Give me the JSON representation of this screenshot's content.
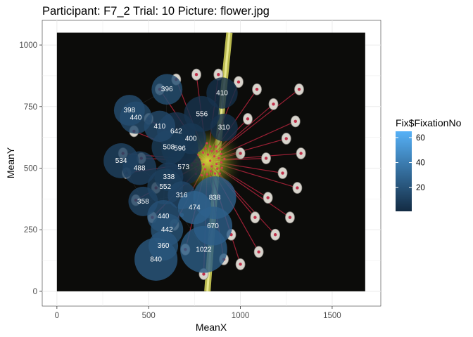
{
  "chart_data": {
    "type": "scatter",
    "title": "Participant: F7_2 Trial: 10 Picture: flower.jpg",
    "xlabel": "MeanX",
    "ylabel": "MeanY",
    "xlim": [
      -80,
      1765
    ],
    "ylim": [
      -60,
      1100
    ],
    "x_ticks": [
      0,
      500,
      1000,
      1500
    ],
    "y_ticks": [
      0,
      250,
      500,
      750,
      1000
    ],
    "grid": true,
    "background_image": {
      "x_range": [
        0,
        1680
      ],
      "y_range": [
        0,
        1050
      ],
      "source_name": "flower.jpg"
    },
    "legend": {
      "title": "Fix$FixationNo",
      "placement": "right",
      "range": [
        1,
        65
      ],
      "ticks": [
        20,
        40,
        60
      ],
      "color_low": "#132b43",
      "color_high": "#56b1f7"
    },
    "series": [
      {
        "points": [
          {
            "fix": 1,
            "x": 690,
            "y": 505,
            "duration": 573
          },
          {
            "fix": 2,
            "x": 670,
            "y": 580,
            "duration": 596
          },
          {
            "fix": 3,
            "x": 900,
            "y": 805,
            "duration": 410
          },
          {
            "fix": 4,
            "x": 910,
            "y": 665,
            "duration": 310
          },
          {
            "fix": 5,
            "x": 790,
            "y": 720,
            "duration": 556
          },
          {
            "fix": 6,
            "x": 650,
            "y": 650,
            "duration": 642
          },
          {
            "fix": 7,
            "x": 730,
            "y": 620,
            "duration": 400
          },
          {
            "fix": 8,
            "x": 610,
            "y": 585,
            "duration": 508
          },
          {
            "fix": 9,
            "x": 610,
            "y": 465,
            "duration": 338
          },
          {
            "fix": 10,
            "x": 590,
            "y": 425,
            "duration": 552
          },
          {
            "fix": 11,
            "x": 450,
            "y": 500,
            "duration": 488
          },
          {
            "fix": 12,
            "x": 350,
            "y": 530,
            "duration": 534
          },
          {
            "fix": 13,
            "x": 470,
            "y": 365,
            "duration": 358
          },
          {
            "fix": 14,
            "x": 680,
            "y": 390,
            "duration": 316
          },
          {
            "fix": 15,
            "x": 560,
            "y": 670,
            "duration": 410
          },
          {
            "fix": 16,
            "x": 430,
            "y": 705,
            "duration": 440
          },
          {
            "fix": 17,
            "x": 395,
            "y": 735,
            "duration": 398
          },
          {
            "fix": 18,
            "x": 600,
            "y": 820,
            "duration": 396
          },
          {
            "fix": 19,
            "x": 580,
            "y": 305,
            "duration": 440
          },
          {
            "fix": 20,
            "x": 600,
            "y": 250,
            "duration": 442
          },
          {
            "fix": 21,
            "x": 580,
            "y": 185,
            "duration": 360
          },
          {
            "fix": 22,
            "x": 540,
            "y": 130,
            "duration": 840
          },
          {
            "fix": 23,
            "x": 680,
            "y": 310,
            "duration": 0
          },
          {
            "fix": 24,
            "x": 800,
            "y": 170,
            "duration": 1022
          },
          {
            "fix": 25,
            "x": 850,
            "y": 265,
            "duration": 670
          },
          {
            "fix": 26,
            "x": 860,
            "y": 380,
            "duration": 838
          },
          {
            "fix": 27,
            "x": 750,
            "y": 340,
            "duration": 474
          }
        ]
      }
    ]
  }
}
